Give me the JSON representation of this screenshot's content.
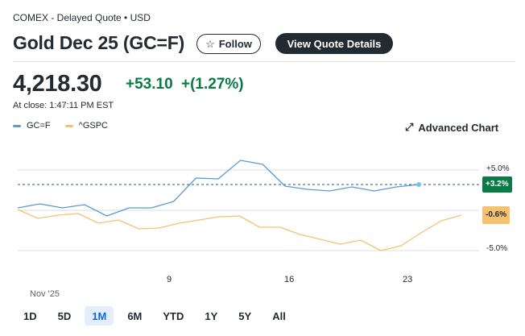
{
  "header": {
    "exchange_line": "COMEX - Delayed Quote • USD",
    "title": "Gold Dec 25 (GC=F)",
    "follow_label": "Follow",
    "view_details_label": "View Quote Details"
  },
  "quote": {
    "price": "4,218.30",
    "change": "+53.10",
    "change_percent": "+(1.27%)",
    "close_time": "At close: 1:47:11 PM EST",
    "up_color": "#0a7a46"
  },
  "legend": [
    {
      "label": "GC=F",
      "color": "#5b9bd5"
    },
    {
      "label": "^GSPC",
      "color": "#f5c270"
    }
  ],
  "advanced_chart_label": "Advanced Chart",
  "chart_data": {
    "type": "line",
    "x_ticks": [
      "9",
      "16",
      "23"
    ],
    "x_month_label": "Nov '25",
    "y_ticks": [
      "+5.0%",
      "-5.0%"
    ],
    "ylim": [
      -5,
      5
    ],
    "baseline_value": 0,
    "reference_line": 3.2,
    "series": [
      {
        "name": "GC=F",
        "color": "#5b9bd5",
        "end_label": "+3.2%",
        "values": [
          0.3,
          0.8,
          0.3,
          0.7,
          -0.7,
          0.3,
          0.3,
          1.1,
          4.0,
          3.9,
          6.2,
          5.7,
          3.0,
          2.6,
          2.4,
          2.9,
          2.4,
          2.9,
          3.2
        ]
      },
      {
        "name": "^GSPC",
        "color": "#f5c270",
        "end_label": "-0.6%",
        "values": [
          0.1,
          -1.0,
          -0.6,
          -0.4,
          -1.6,
          -1.2,
          -2.3,
          -2.2,
          -1.6,
          -1.2,
          -0.8,
          -0.7,
          -2.1,
          -2.1,
          -3.0,
          -3.6,
          -4.2,
          -3.7,
          -5.0,
          -4.4,
          -2.8,
          -1.3,
          -0.6
        ]
      }
    ]
  },
  "ranges": [
    {
      "label": "1D",
      "active": false
    },
    {
      "label": "5D",
      "active": false
    },
    {
      "label": "1M",
      "active": true
    },
    {
      "label": "6M",
      "active": false
    },
    {
      "label": "YTD",
      "active": false
    },
    {
      "label": "1Y",
      "active": false
    },
    {
      "label": "5Y",
      "active": false
    },
    {
      "label": "All",
      "active": false
    }
  ]
}
